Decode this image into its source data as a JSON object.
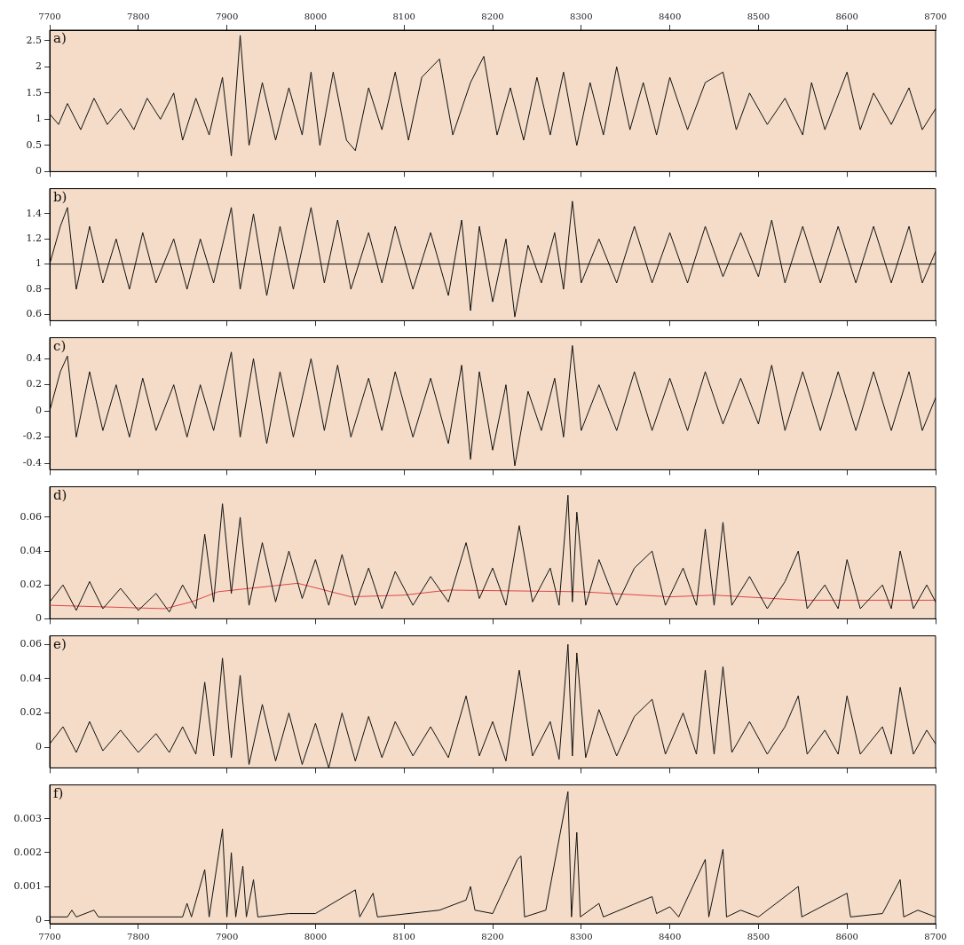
{
  "chart_data": [
    {
      "type": "line",
      "annotations": [
        "a)"
      ],
      "xlim": [
        7700,
        8700
      ],
      "xticks": [
        7700,
        7800,
        7900,
        8000,
        8100,
        8200,
        8300,
        8400,
        8500,
        8600,
        8700
      ],
      "x2lim": [
        7700,
        8700
      ],
      "x2ticks": [
        7700,
        7800,
        7900,
        8000,
        8100,
        8200,
        8300,
        8400,
        8500,
        8600,
        8700
      ],
      "tick_labels": "y",
      "ylim": [
        0,
        2.7
      ],
      "yticks": [
        0,
        0.5,
        1,
        1.5,
        2,
        2.5
      ],
      "legend": false,
      "x": [
        7700,
        7710,
        7720,
        7735,
        7750,
        7765,
        7780,
        7795,
        7810,
        7825,
        7840,
        7850,
        7865,
        7880,
        7895,
        7905,
        7915,
        7925,
        7940,
        7955,
        7970,
        7985,
        7995,
        8005,
        8020,
        8035,
        8045,
        8060,
        8075,
        8090,
        8105,
        8120,
        8140,
        8155,
        8175,
        8190,
        8205,
        8220,
        8235,
        8250,
        8265,
        8280,
        8295,
        8310,
        8325,
        8340,
        8355,
        8370,
        8385,
        8400,
        8420,
        8440,
        8460,
        8475,
        8490,
        8510,
        8530,
        8550,
        8560,
        8575,
        8600,
        8615,
        8630,
        8650,
        8670,
        8685,
        8700
      ],
      "series": [
        {
          "color": "#111111",
          "values": [
            1.1,
            0.9,
            1.3,
            0.8,
            1.4,
            0.9,
            1.2,
            0.8,
            1.4,
            1.0,
            1.5,
            0.6,
            1.4,
            0.7,
            1.8,
            0.3,
            2.6,
            0.5,
            1.7,
            0.6,
            1.6,
            0.7,
            1.9,
            0.5,
            1.9,
            0.6,
            0.4,
            1.6,
            0.8,
            1.9,
            0.6,
            1.8,
            2.15,
            0.7,
            1.7,
            2.2,
            0.7,
            1.6,
            0.6,
            1.8,
            0.7,
            1.9,
            0.5,
            1.7,
            0.7,
            2.0,
            0.8,
            1.7,
            0.7,
            1.8,
            0.8,
            1.7,
            1.9,
            0.8,
            1.5,
            0.9,
            1.4,
            0.7,
            1.7,
            0.8,
            1.9,
            0.8,
            1.5,
            0.9,
            1.6,
            0.8,
            1.2
          ]
        }
      ]
    },
    {
      "type": "line",
      "annotations": [
        "b)"
      ],
      "xlim": [
        7700,
        8700
      ],
      "xticks": [
        7700,
        7800,
        7900,
        8000,
        8100,
        8200,
        8300,
        8400,
        8500,
        8600,
        8700
      ],
      "ylim": [
        0.55,
        1.6
      ],
      "yticks": [
        0.6,
        0.8,
        1,
        1.2,
        1.4
      ],
      "tick_labels": "y",
      "legend": false,
      "ref_lines": [
        {
          "axis": "y",
          "value": 1,
          "color": "#111111"
        }
      ],
      "x": [
        7700,
        7712,
        7720,
        7730,
        7745,
        7760,
        7775,
        7790,
        7805,
        7820,
        7840,
        7855,
        7870,
        7885,
        7905,
        7915,
        7930,
        7945,
        7960,
        7975,
        7995,
        8010,
        8025,
        8040,
        8060,
        8075,
        8090,
        8110,
        8130,
        8150,
        8165,
        8175,
        8185,
        8200,
        8215,
        8225,
        8240,
        8255,
        8270,
        8280,
        8290,
        8300,
        8320,
        8340,
        8360,
        8380,
        8400,
        8420,
        8440,
        8460,
        8480,
        8500,
        8515,
        8530,
        8550,
        8570,
        8590,
        8610,
        8630,
        8650,
        8670,
        8685,
        8700
      ],
      "series": [
        {
          "color": "#111111",
          "values": [
            1.0,
            1.3,
            1.45,
            0.8,
            1.3,
            0.85,
            1.2,
            0.8,
            1.25,
            0.85,
            1.2,
            0.8,
            1.2,
            0.85,
            1.45,
            0.8,
            1.4,
            0.75,
            1.3,
            0.8,
            1.45,
            0.85,
            1.35,
            0.8,
            1.25,
            0.85,
            1.3,
            0.8,
            1.25,
            0.75,
            1.35,
            0.63,
            1.3,
            0.7,
            1.2,
            0.58,
            1.15,
            0.85,
            1.25,
            0.8,
            1.5,
            0.85,
            1.2,
            0.85,
            1.3,
            0.85,
            1.25,
            0.85,
            1.3,
            0.9,
            1.25,
            0.9,
            1.35,
            0.85,
            1.3,
            0.85,
            1.3,
            0.85,
            1.3,
            0.85,
            1.3,
            0.85,
            1.1
          ]
        }
      ]
    },
    {
      "type": "line",
      "annotations": [
        "c)"
      ],
      "xlim": [
        7700,
        8700
      ],
      "xticks": [
        7700,
        7800,
        7900,
        8000,
        8100,
        8200,
        8300,
        8400,
        8500,
        8600,
        8700
      ],
      "ylim": [
        -0.45,
        0.56
      ],
      "yticks": [
        -0.4,
        -0.2,
        0,
        0.2,
        0.4
      ],
      "tick_labels": "y",
      "legend": false,
      "x": [
        7700,
        7712,
        7720,
        7730,
        7745,
        7760,
        7775,
        7790,
        7805,
        7820,
        7840,
        7855,
        7870,
        7885,
        7905,
        7915,
        7930,
        7945,
        7960,
        7975,
        7995,
        8010,
        8025,
        8040,
        8060,
        8075,
        8090,
        8110,
        8130,
        8150,
        8165,
        8175,
        8185,
        8200,
        8215,
        8225,
        8240,
        8255,
        8270,
        8280,
        8290,
        8300,
        8320,
        8340,
        8360,
        8380,
        8400,
        8420,
        8440,
        8460,
        8480,
        8500,
        8515,
        8530,
        8550,
        8570,
        8590,
        8610,
        8630,
        8650,
        8670,
        8685,
        8700
      ],
      "series": [
        {
          "color": "#111111",
          "values": [
            0.0,
            0.3,
            0.42,
            -0.2,
            0.3,
            -0.15,
            0.2,
            -0.2,
            0.25,
            -0.15,
            0.2,
            -0.2,
            0.2,
            -0.15,
            0.45,
            -0.2,
            0.4,
            -0.25,
            0.3,
            -0.2,
            0.4,
            -0.15,
            0.35,
            -0.2,
            0.25,
            -0.15,
            0.3,
            -0.2,
            0.25,
            -0.25,
            0.35,
            -0.37,
            0.3,
            -0.3,
            0.2,
            -0.42,
            0.15,
            -0.15,
            0.25,
            -0.2,
            0.5,
            -0.15,
            0.2,
            -0.15,
            0.3,
            -0.15,
            0.25,
            -0.15,
            0.3,
            -0.1,
            0.25,
            -0.1,
            0.35,
            -0.15,
            0.3,
            -0.15,
            0.3,
            -0.15,
            0.3,
            -0.15,
            0.3,
            -0.15,
            0.1
          ]
        }
      ]
    },
    {
      "type": "line",
      "annotations": [
        "d)"
      ],
      "xlim": [
        7700,
        8700
      ],
      "xticks": [
        7700,
        7800,
        7900,
        8000,
        8100,
        8200,
        8300,
        8400,
        8500,
        8600,
        8700
      ],
      "ylim": [
        0,
        0.078
      ],
      "yticks": [
        0,
        0.02,
        0.04,
        0.06
      ],
      "tick_labels": "y",
      "legend": false,
      "x": [
        7700,
        7715,
        7730,
        7745,
        7760,
        7780,
        7800,
        7820,
        7835,
        7850,
        7865,
        7875,
        7885,
        7895,
        7905,
        7915,
        7925,
        7940,
        7955,
        7970,
        7985,
        8000,
        8015,
        8030,
        8045,
        8060,
        8075,
        8090,
        8110,
        8130,
        8150,
        8170,
        8185,
        8200,
        8215,
        8230,
        8245,
        8265,
        8275,
        8285,
        8290,
        8295,
        8305,
        8320,
        8340,
        8360,
        8380,
        8395,
        8415,
        8430,
        8440,
        8450,
        8460,
        8470,
        8490,
        8510,
        8530,
        8545,
        8555,
        8575,
        8590,
        8600,
        8615,
        8640,
        8650,
        8660,
        8675,
        8690,
        8700
      ],
      "series": [
        {
          "color": "#111111",
          "values": [
            0.01,
            0.02,
            0.005,
            0.022,
            0.006,
            0.018,
            0.005,
            0.015,
            0.004,
            0.02,
            0.006,
            0.05,
            0.01,
            0.068,
            0.015,
            0.06,
            0.008,
            0.045,
            0.01,
            0.04,
            0.012,
            0.035,
            0.008,
            0.038,
            0.008,
            0.03,
            0.006,
            0.028,
            0.008,
            0.025,
            0.01,
            0.045,
            0.012,
            0.03,
            0.008,
            0.055,
            0.01,
            0.03,
            0.008,
            0.073,
            0.01,
            0.063,
            0.008,
            0.035,
            0.008,
            0.03,
            0.04,
            0.008,
            0.03,
            0.008,
            0.053,
            0.008,
            0.057,
            0.008,
            0.025,
            0.006,
            0.022,
            0.04,
            0.006,
            0.02,
            0.006,
            0.035,
            0.006,
            0.02,
            0.006,
            0.04,
            0.006,
            0.02,
            0.01
          ]
        },
        {
          "color": "#e0454a",
          "x": [
            7700,
            7830,
            7860,
            7890,
            7980,
            8040,
            8100,
            8150,
            8300,
            8400,
            8450,
            8550,
            8700
          ],
          "values": [
            0.008,
            0.006,
            0.01,
            0.016,
            0.021,
            0.013,
            0.014,
            0.017,
            0.016,
            0.013,
            0.014,
            0.011,
            0.011
          ]
        }
      ]
    },
    {
      "type": "line",
      "annotations": [
        "e)"
      ],
      "xlim": [
        7700,
        8700
      ],
      "xticks": [
        7700,
        7800,
        7900,
        8000,
        8100,
        8200,
        8300,
        8400,
        8500,
        8600,
        8700
      ],
      "ylim": [
        -0.012,
        0.065
      ],
      "yticks": [
        0,
        0.02,
        0.04,
        0.06
      ],
      "tick_labels": "y",
      "legend": false,
      "x": [
        7700,
        7715,
        7730,
        7745,
        7760,
        7780,
        7800,
        7820,
        7835,
        7850,
        7865,
        7875,
        7885,
        7895,
        7905,
        7915,
        7925,
        7940,
        7955,
        7970,
        7985,
        8000,
        8015,
        8030,
        8045,
        8060,
        8075,
        8090,
        8110,
        8130,
        8150,
        8170,
        8185,
        8200,
        8215,
        8230,
        8245,
        8265,
        8275,
        8285,
        8290,
        8295,
        8305,
        8320,
        8340,
        8360,
        8380,
        8395,
        8415,
        8430,
        8440,
        8450,
        8460,
        8470,
        8490,
        8510,
        8530,
        8545,
        8555,
        8575,
        8590,
        8600,
        8615,
        8640,
        8650,
        8660,
        8675,
        8690,
        8700
      ],
      "series": [
        {
          "color": "#111111",
          "values": [
            0.002,
            0.012,
            -0.003,
            0.015,
            -0.002,
            0.01,
            -0.003,
            0.008,
            -0.003,
            0.012,
            -0.004,
            0.038,
            -0.005,
            0.052,
            -0.006,
            0.042,
            -0.01,
            0.025,
            -0.008,
            0.02,
            -0.01,
            0.014,
            -0.012,
            0.02,
            -0.008,
            0.018,
            -0.006,
            0.015,
            -0.005,
            0.012,
            -0.006,
            0.03,
            -0.005,
            0.015,
            -0.008,
            0.045,
            -0.005,
            0.015,
            -0.007,
            0.06,
            -0.005,
            0.055,
            -0.006,
            0.022,
            -0.005,
            0.018,
            0.028,
            -0.004,
            0.02,
            -0.004,
            0.045,
            -0.004,
            0.047,
            -0.003,
            0.015,
            -0.004,
            0.012,
            0.03,
            -0.004,
            0.01,
            -0.004,
            0.03,
            -0.004,
            0.012,
            -0.004,
            0.035,
            -0.004,
            0.01,
            0.002
          ]
        }
      ]
    },
    {
      "type": "line",
      "annotations": [
        "f)"
      ],
      "xlim": [
        7700,
        8700
      ],
      "xticks": [
        7700,
        7800,
        7900,
        8000,
        8100,
        8200,
        8300,
        8400,
        8500,
        8600,
        8700
      ],
      "ylim": [
        -0.0001,
        0.004
      ],
      "yticks": [
        0,
        0.001,
        0.002,
        0.003
      ],
      "legend": false,
      "x": [
        7700,
        7720,
        7725,
        7730,
        7750,
        7755,
        7850,
        7855,
        7860,
        7875,
        7880,
        7895,
        7900,
        7905,
        7910,
        7918,
        7922,
        7930,
        7935,
        7970,
        8000,
        8045,
        8050,
        8065,
        8070,
        8140,
        8170,
        8175,
        8180,
        8200,
        8228,
        8232,
        8236,
        8260,
        8285,
        8289,
        8295,
        8299,
        8320,
        8325,
        8380,
        8385,
        8400,
        8410,
        8440,
        8444,
        8460,
        8464,
        8480,
        8500,
        8545,
        8549,
        8600,
        8604,
        8640,
        8660,
        8664,
        8680,
        8700
      ],
      "series": [
        {
          "color": "#111111",
          "values": [
            0.0001,
            0.0001,
            0.0003,
            0.0001,
            0.0003,
            0.0001,
            0.0001,
            0.0005,
            0.0001,
            0.0015,
            0.0001,
            0.0027,
            0.0001,
            0.002,
            0.0001,
            0.0016,
            0.0001,
            0.0012,
            0.0001,
            0.0002,
            0.0002,
            0.0009,
            0.0001,
            0.0008,
            0.0001,
            0.0003,
            0.0006,
            0.001,
            0.0003,
            0.0002,
            0.0018,
            0.0019,
            0.0001,
            0.0003,
            0.0038,
            0.0001,
            0.0026,
            0.0001,
            0.0005,
            0.0001,
            0.0007,
            0.0002,
            0.0004,
            0.0001,
            0.0018,
            0.0001,
            0.0021,
            0.0001,
            0.0003,
            0.0001,
            0.001,
            0.0001,
            0.0008,
            0.0001,
            0.0002,
            0.0012,
            0.0001,
            0.0003,
            0.0001
          ]
        }
      ]
    }
  ]
}
